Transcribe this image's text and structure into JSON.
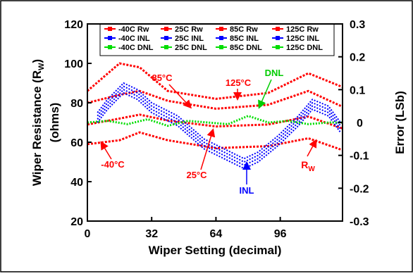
{
  "chart_data": {
    "type": "line",
    "xlabel": "Wiper Setting (decimal)",
    "ylabel_left_line1": "Wiper Resistance (R",
    "ylabel_left_sub": "W",
    "ylabel_left_line1_end": ")",
    "ylabel_left_line2": "(ohms)",
    "ylabel_right": "Error (LSb)",
    "xlim": [
      0,
      127
    ],
    "ylim_left": [
      20,
      120
    ],
    "ylim_right": [
      -0.3,
      0.3
    ],
    "x_ticks": [
      "0",
      "32",
      "64",
      "96"
    ],
    "y_left_ticks": [
      "20",
      "40",
      "60",
      "80",
      "100",
      "120"
    ],
    "y_right_ticks": [
      "-0.3",
      "-0.2",
      "-0.1",
      "0",
      "0.1",
      "0.2",
      "0.3"
    ],
    "grid": false,
    "legend_position": "top",
    "legend": [
      [
        "-40C Rw",
        "25C Rw",
        "85C Rw",
        "125C Rw"
      ],
      [
        "-40C INL",
        "25C INL",
        "85C INL",
        "125C INL"
      ],
      [
        "-40C DNL",
        "25C DNL",
        "85C DNL",
        "125C DNL"
      ]
    ],
    "rw_series": [
      {
        "temp": "-40C",
        "x": [
          0,
          16,
          26,
          40,
          64,
          90,
          110,
          127
        ],
        "y": [
          59,
          61,
          65,
          61,
          57,
          58,
          62,
          56
        ]
      },
      {
        "temp": "25C",
        "x": [
          0,
          16,
          26,
          40,
          64,
          90,
          110,
          127
        ],
        "y": [
          69,
          72,
          74,
          71,
          68,
          69,
          73,
          67
        ]
      },
      {
        "temp": "85C",
        "x": [
          0,
          16,
          26,
          40,
          64,
          90,
          110,
          127
        ],
        "y": [
          80,
          84,
          86,
          81,
          77,
          79,
          86,
          78
        ]
      },
      {
        "temp": "125C",
        "x": [
          0,
          16,
          26,
          40,
          64,
          90,
          110,
          127
        ],
        "y": [
          86,
          100,
          98,
          86,
          82,
          85,
          95,
          88
        ]
      }
    ],
    "inl_series": [
      {
        "x": [
          5,
          10,
          18,
          25,
          32,
          45,
          58,
          68,
          78,
          85,
          95,
          105,
          112,
          120,
          126
        ],
        "y": [
          0.03,
          0.07,
          0.12,
          0.1,
          0.06,
          0.02,
          -0.05,
          -0.08,
          -0.11,
          -0.09,
          -0.04,
          0.02,
          0.07,
          0.05,
          0.0
        ]
      },
      {
        "x": [
          5,
          10,
          18,
          25,
          32,
          45,
          58,
          68,
          78,
          85,
          95,
          105,
          112,
          120,
          126
        ],
        "y": [
          0.02,
          0.06,
          0.11,
          0.09,
          0.05,
          0.01,
          -0.06,
          -0.09,
          -0.12,
          -0.1,
          -0.05,
          0.01,
          0.06,
          0.04,
          -0.01
        ]
      },
      {
        "x": [
          5,
          10,
          18,
          25,
          32,
          45,
          58,
          68,
          78,
          85,
          95,
          105,
          112,
          120,
          126
        ],
        "y": [
          0.01,
          0.05,
          0.1,
          0.08,
          0.04,
          0.0,
          -0.07,
          -0.1,
          -0.13,
          -0.11,
          -0.06,
          0.0,
          0.05,
          0.03,
          -0.02
        ]
      },
      {
        "x": [
          5,
          10,
          18,
          25,
          32,
          45,
          58,
          68,
          78,
          85,
          95,
          105,
          112,
          120,
          126
        ],
        "y": [
          0.0,
          0.04,
          0.09,
          0.07,
          0.03,
          -0.01,
          -0.08,
          -0.11,
          -0.14,
          -0.12,
          -0.07,
          -0.01,
          0.04,
          0.02,
          -0.03
        ]
      }
    ],
    "dnl_series": {
      "x": [
        0,
        10,
        20,
        30,
        40,
        50,
        60,
        70,
        80,
        90,
        100,
        110,
        120,
        127
      ],
      "y": [
        0.0,
        0.005,
        -0.005,
        0.01,
        -0.01,
        0.005,
        0.0,
        -0.005,
        0.02,
        0.0,
        0.005,
        -0.005,
        0.0,
        0.0
      ]
    },
    "annotations": [
      "85°C",
      "125°C",
      "DNL",
      "-40°C",
      "25°C",
      "INL",
      "R",
      "W"
    ],
    "colors": {
      "rw": "#ff0000",
      "inl": "#0000ff",
      "dnl": "#00dd00"
    }
  }
}
